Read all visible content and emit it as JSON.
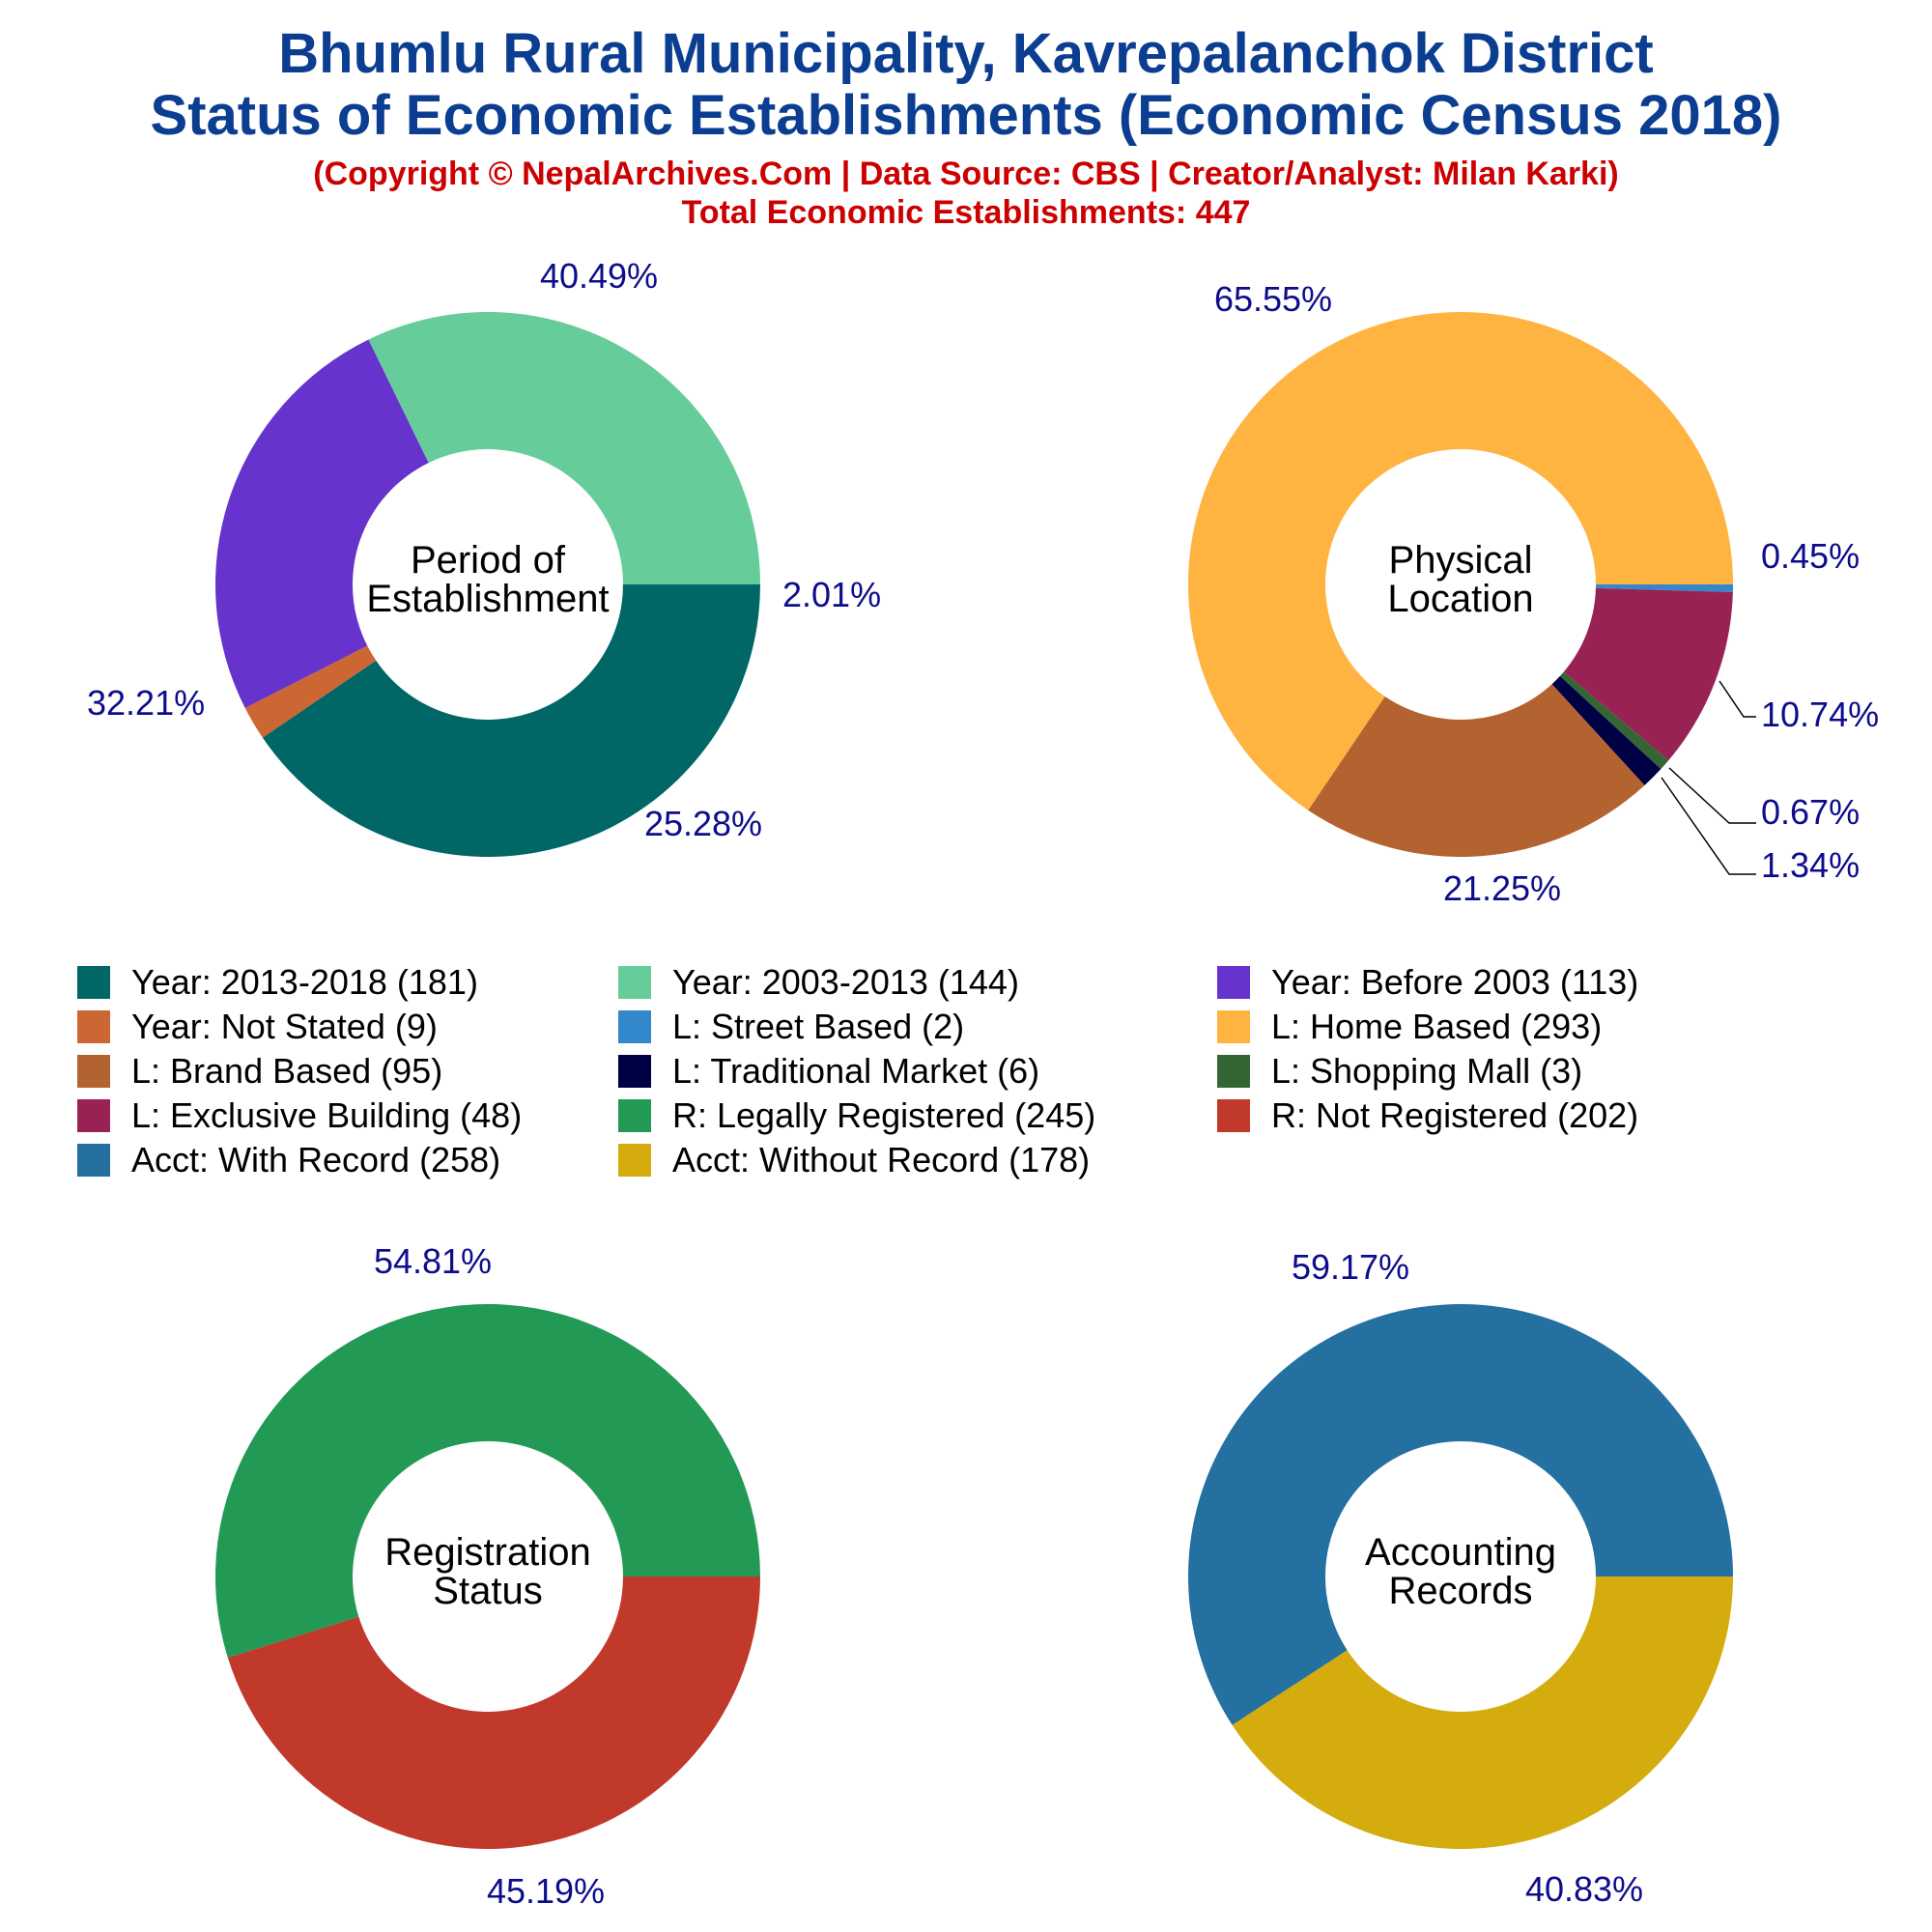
{
  "header": {
    "title_line1": "Bhumlu Rural Municipality, Kavrepalanchok District",
    "title_line2": "Status of Economic Establishments (Economic Census 2018)",
    "copyright": "(Copyright © NepalArchives.Com | Data Source: CBS | Creator/Analyst: Milan Karki)",
    "total": "Total Economic Establishments: 447"
  },
  "legend": [
    {
      "label": "Year: 2013-2018 (181)",
      "color": "#006666"
    },
    {
      "label": "Year: 2003-2013 (144)",
      "color": "#66cc99"
    },
    {
      "label": "Year: Before 2003 (113)",
      "color": "#6633cc"
    },
    {
      "label": "Year: Not Stated (9)",
      "color": "#cc6633"
    },
    {
      "label": "L: Street Based (2)",
      "color": "#3388cc"
    },
    {
      "label": "L: Home Based (293)",
      "color": "#ffb340"
    },
    {
      "label": "L: Brand Based (95)",
      "color": "#b36330"
    },
    {
      "label": "L: Traditional Market (6)",
      "color": "#000044"
    },
    {
      "label": "L: Shopping Mall (3)",
      "color": "#336633"
    },
    {
      "label": "L: Exclusive Building (48)",
      "color": "#992255"
    },
    {
      "label": "R: Legally Registered (245)",
      "color": "#229955"
    },
    {
      "label": "R: Not Registered (202)",
      "color": "#c0392b"
    },
    {
      "label": "Acct: With Record (258)",
      "color": "#2470a0"
    },
    {
      "label": "Acct: Without Record (178)",
      "color": "#d4ac0d"
    }
  ],
  "chart_data": [
    {
      "type": "pie",
      "center_label": [
        "Period of",
        "Establishment"
      ],
      "slices": [
        {
          "name": "Year: 2013-2018",
          "value": 181,
          "label": "40.49%",
          "color": "#006666"
        },
        {
          "name": "Year: Not Stated",
          "value": 9,
          "label": "2.01%",
          "color": "#cc6633"
        },
        {
          "name": "Year: Before 2003",
          "value": 113,
          "label": "25.28%",
          "color": "#6633cc"
        },
        {
          "name": "Year: 2003-2013",
          "value": 144,
          "label": "32.21%",
          "color": "#66cc99"
        }
      ]
    },
    {
      "type": "pie",
      "center_label": [
        "Physical",
        "Location"
      ],
      "slices": [
        {
          "name": "L: Street Based",
          "value": 2,
          "label": "0.45%",
          "color": "#3388cc"
        },
        {
          "name": "L: Exclusive Building",
          "value": 48,
          "label": "10.74%",
          "color": "#992255"
        },
        {
          "name": "L: Shopping Mall",
          "value": 3,
          "label": "0.67%",
          "color": "#336633"
        },
        {
          "name": "L: Traditional Market",
          "value": 6,
          "label": "1.34%",
          "color": "#000044"
        },
        {
          "name": "L: Brand Based",
          "value": 95,
          "label": "21.25%",
          "color": "#b36330"
        },
        {
          "name": "L: Home Based",
          "value": 293,
          "label": "65.55%",
          "color": "#ffb340"
        }
      ]
    },
    {
      "type": "pie",
      "center_label": [
        "Registration",
        "Status"
      ],
      "slices": [
        {
          "name": "R: Not Registered",
          "value": 202,
          "label": "45.19%",
          "color": "#c0392b"
        },
        {
          "name": "R: Legally Registered",
          "value": 245,
          "label": "54.81%",
          "color": "#229955"
        }
      ]
    },
    {
      "type": "pie",
      "center_label": [
        "Accounting",
        "Records"
      ],
      "slices": [
        {
          "name": "Acct: Without Record",
          "value": 178,
          "label": "40.83%",
          "color": "#d4ac0d"
        },
        {
          "name": "Acct: With Record",
          "value": 258,
          "label": "59.17%",
          "color": "#2470a0"
        }
      ]
    }
  ]
}
